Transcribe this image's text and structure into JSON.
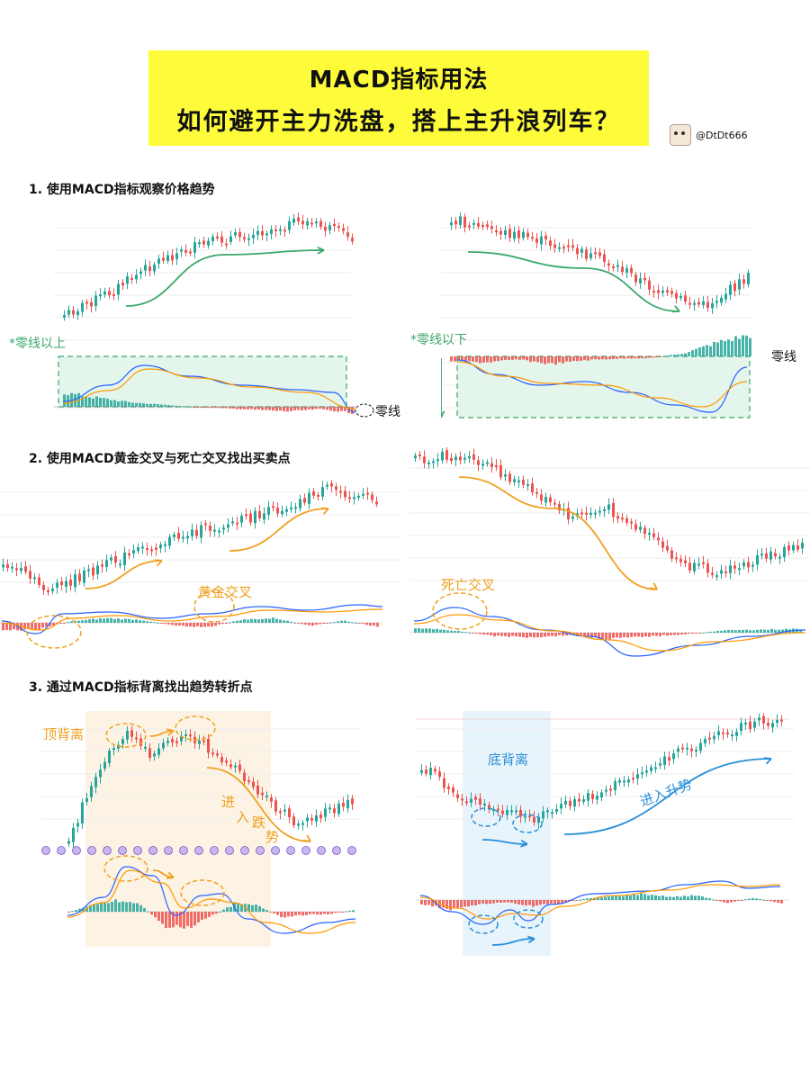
{
  "header": {
    "title_line1": "MACD指标用法",
    "title_line2": "如何避开主力洗盘，搭上主升浪列车？",
    "author_handle": "@DtDt666",
    "banner_color": "#fdfb3a"
  },
  "sections": [
    {
      "title": "1. 使用MACD指标观察价格趋势"
    },
    {
      "title": "2. 使用MACD黄金交叉与死亡交叉找出买卖点"
    },
    {
      "title": "3. 通过MACD指标背离找出趋势转折点"
    }
  ],
  "annotations": {
    "above_zero": "*零线以上",
    "below_zero": "*零线以下",
    "zero_line_1": "零线",
    "zero_line_2": "零线",
    "golden_cross": "黄金交叉",
    "death_cross": "死亡交叉",
    "top_divergence": "顶背离",
    "bottom_divergence": "底背离",
    "enter_downtrend": [
      "进",
      "入",
      "跌",
      "势"
    ],
    "enter_uptrend": "进入升势"
  },
  "colors": {
    "up": "#26a69a",
    "down": "#ef5350",
    "green_annot": "#3aa86b",
    "orange_annot": "#f0a020",
    "blue_annot": "#2a8fd8",
    "macd_line": "#2962ff",
    "signal_line": "#ff9800"
  }
}
